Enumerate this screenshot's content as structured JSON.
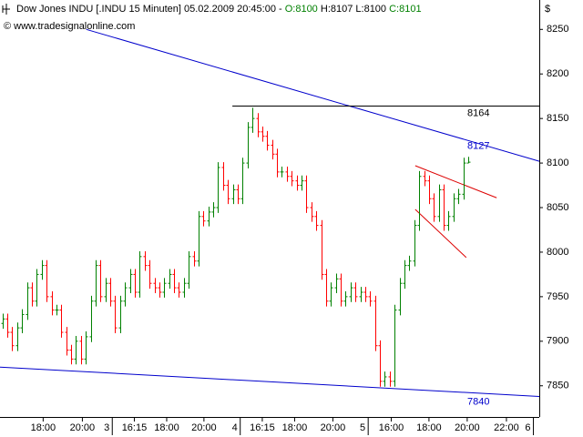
{
  "chart_data": {
    "type": "ohlc",
    "header": {
      "title": "Dow Jones INDU [.INDU  15 Minuten] 05.02.2009 20:45:00 -",
      "open": "O:8100",
      "high_low": "H:8107 L:8100",
      "close": "C:8101",
      "copyright": "© www.tradesignalonline.com",
      "currency": "$"
    },
    "up_color": "#008000",
    "down_color": "#ff0000",
    "open": [
      7920,
      7925,
      7910,
      7895,
      7915,
      7930,
      7960,
      7945,
      7975,
      7985,
      7950,
      7935,
      7935,
      7910,
      7890,
      7880,
      7900,
      7880,
      7905,
      7945,
      7985,
      7950,
      7965,
      7945,
      7915,
      7945,
      7960,
      7975,
      7955,
      7995,
      7985,
      7965,
      7960,
      7955,
      7965,
      7975,
      7960,
      7955,
      7965,
      7995,
      7990,
      8040,
      8035,
      8045,
      8050,
      8095,
      8075,
      8060,
      8070,
      8060,
      8100,
      8140,
      8150,
      8135,
      8130,
      8120,
      8110,
      8090,
      8090,
      8085,
      8080,
      8075,
      8080,
      8050,
      8040,
      8030,
      7975,
      7945,
      7960,
      7970,
      7945,
      7950,
      7960,
      7950,
      7955,
      7950,
      7945,
      7895,
      7855,
      7860,
      7855,
      7935,
      7965,
      7985,
      7990,
      8030,
      8085,
      8080,
      8060,
      8040,
      8070,
      8030,
      8040,
      8060,
      8065,
      8100
    ],
    "high": [
      7931,
      7931,
      7916,
      7921,
      7936,
      7966,
      7966,
      7981,
      7991,
      7991,
      7956,
      7941,
      7941,
      7916,
      7896,
      7906,
      7906,
      7911,
      7951,
      7991,
      7991,
      7971,
      7971,
      7951,
      7951,
      7966,
      7981,
      7981,
      8001,
      8001,
      7991,
      7971,
      7966,
      7971,
      7981,
      7981,
      7966,
      7971,
      8001,
      8001,
      8046,
      8046,
      8051,
      8056,
      8101,
      8101,
      8081,
      8076,
      8076,
      8106,
      8146,
      8162,
      8156,
      8141,
      8136,
      8126,
      8116,
      8096,
      8096,
      8091,
      8086,
      8086,
      8086,
      8056,
      8046,
      8036,
      7981,
      7966,
      7976,
      7976,
      7956,
      7966,
      7966,
      7961,
      7961,
      7956,
      7951,
      7901,
      7866,
      7866,
      7941,
      7971,
      7991,
      7996,
      8036,
      8091,
      8091,
      8086,
      8066,
      8076,
      8076,
      8046,
      8066,
      8071,
      8106,
      8107
    ],
    "low": [
      7914,
      7904,
      7889,
      7889,
      7909,
      7924,
      7939,
      7939,
      7969,
      7944,
      7929,
      7929,
      7904,
      7884,
      7874,
      7874,
      7874,
      7874,
      7899,
      7939,
      7944,
      7944,
      7939,
      7909,
      7909,
      7939,
      7954,
      7949,
      7949,
      7979,
      7959,
      7954,
      7949,
      7949,
      7959,
      7954,
      7949,
      7949,
      7959,
      7984,
      7984,
      8029,
      8029,
      8039,
      8044,
      8069,
      8054,
      8054,
      8054,
      8054,
      8094,
      8134,
      8129,
      8124,
      8114,
      8104,
      8084,
      8084,
      8079,
      8074,
      8069,
      8069,
      8044,
      8034,
      8024,
      7969,
      7939,
      7939,
      7954,
      7939,
      7939,
      7944,
      7944,
      7944,
      7944,
      7939,
      7889,
      7849,
      7849,
      7849,
      7849,
      7929,
      7959,
      7979,
      7984,
      8024,
      8074,
      8054,
      8034,
      8034,
      8024,
      8024,
      8034,
      8054,
      8059,
      8100
    ],
    "close": [
      7925,
      7910,
      7895,
      7915,
      7930,
      7960,
      7945,
      7975,
      7985,
      7950,
      7935,
      7935,
      7910,
      7890,
      7880,
      7900,
      7880,
      7905,
      7945,
      7985,
      7950,
      7965,
      7945,
      7915,
      7945,
      7960,
      7975,
      7955,
      7995,
      7985,
      7965,
      7960,
      7955,
      7965,
      7975,
      7960,
      7955,
      7965,
      7995,
      7990,
      8040,
      8035,
      8045,
      8050,
      8095,
      8075,
      8060,
      8070,
      8060,
      8100,
      8140,
      8150,
      8135,
      8130,
      8120,
      8110,
      8090,
      8090,
      8085,
      8080,
      8075,
      8080,
      8050,
      8040,
      8030,
      7975,
      7945,
      7960,
      7970,
      7945,
      7950,
      7960,
      7950,
      7955,
      7950,
      7945,
      7895,
      7855,
      7860,
      7855,
      7935,
      7965,
      7985,
      7990,
      8030,
      8085,
      8080,
      8060,
      8040,
      8070,
      8030,
      8040,
      8060,
      8065,
      8100,
      8101
    ],
    "xlim": [
      -0.5,
      109.5
    ],
    "ylim": [
      7815,
      8283
    ],
    "yticks": [
      7850,
      7900,
      7950,
      8000,
      8050,
      8100,
      8150,
      8200,
      8250
    ],
    "xticks": [
      {
        "value": 8.3,
        "label": "18:00"
      },
      {
        "value": 16.3,
        "label": "20:00"
      },
      {
        "value": 22.4,
        "label": "3"
      },
      {
        "value": 26.9,
        "label": "16:15"
      },
      {
        "value": 33.5,
        "label": "18:00"
      },
      {
        "value": 41.1,
        "label": "20:00"
      },
      {
        "value": 48.5,
        "label": "4"
      },
      {
        "value": 53,
        "label": "16:15"
      },
      {
        "value": 59.6,
        "label": "18:00"
      },
      {
        "value": 67.4,
        "label": "20:00"
      },
      {
        "value": 74.6,
        "label": "5"
      },
      {
        "value": 79.3,
        "label": "16:00"
      },
      {
        "value": 87,
        "label": "18:00"
      },
      {
        "value": 94.8,
        "label": "20:00"
      },
      {
        "value": 102.8,
        "label": "22:00"
      },
      {
        "value": 108.3,
        "label": "6"
      }
    ],
    "lines": [
      {
        "x": [
          17.1,
          109.5
        ],
        "y": [
          8250,
          8102
        ],
        "color": "#0000cc"
      },
      {
        "x": [
          -0.5,
          109.5
        ],
        "y": [
          7871,
          7838
        ],
        "color": "#0000cc"
      },
      {
        "x": [
          46.9,
          109.5
        ],
        "y": [
          8164,
          8164
        ],
        "color": "#000000"
      },
      {
        "x": [
          84.2,
          100.8
        ],
        "y": [
          8097,
          8061
        ],
        "color": "#dd0000"
      },
      {
        "x": [
          84.2,
          94.6
        ],
        "y": [
          8048,
          7994
        ],
        "color": "#dd0000"
      }
    ],
    "price_labels": [
      {
        "value": 8164,
        "color": "#000000"
      },
      {
        "value": 8127,
        "color": "#0000cc"
      },
      {
        "value": 7840,
        "color": "#0000cc"
      }
    ]
  }
}
